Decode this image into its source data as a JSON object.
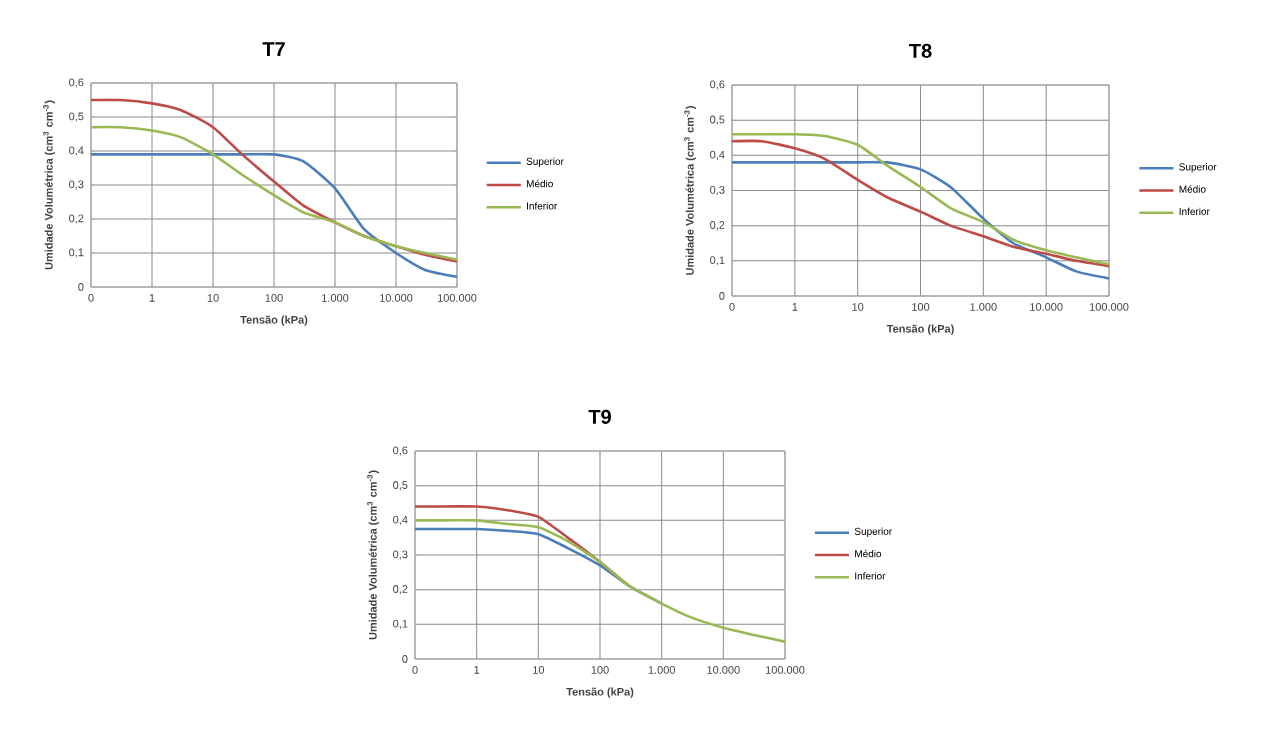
{
  "chart_data": [
    {
      "type": "line",
      "title": "T7",
      "xlabel": "Tensão (kPa)",
      "ylabel": "Umidade Volumétrica (cm$^{3}$ cm$^{-3}$)",
      "log": "x",
      "grid": true,
      "legend": "right",
      "x": [
        0.1,
        0.3,
        1,
        3,
        10,
        30,
        100,
        300,
        1000,
        3000,
        10000,
        30000,
        100000
      ],
      "xlim": [
        0.1,
        100000
      ],
      "ylim": [
        0,
        0.6
      ],
      "xticks": [
        {
          "value": 0.1,
          "label": "0"
        },
        1,
        10,
        100,
        {
          "value": 1000,
          "label": "1.000"
        },
        {
          "value": 10000,
          "label": "10.000"
        },
        {
          "value": 100000,
          "label": "100.000"
        }
      ],
      "yticks": [
        0,
        {
          "value": 0.1,
          "label": "0,1"
        },
        {
          "value": 0.2,
          "label": "0,2"
        },
        {
          "value": 0.3,
          "label": "0,3"
        },
        {
          "value": 0.4,
          "label": "0,4"
        },
        {
          "value": 0.5,
          "label": "0,5"
        },
        {
          "value": 0.6,
          "label": "0,6"
        }
      ],
      "series": [
        {
          "name": "Superior",
          "color": "#4a7ebb",
          "values": [
            0.39,
            0.39,
            0.39,
            0.39,
            0.39,
            0.39,
            0.39,
            0.37,
            0.29,
            0.17,
            0.1,
            0.05,
            0.03
          ]
        },
        {
          "name": "Médio",
          "color": "#be4b48",
          "values": [
            0.55,
            0.55,
            0.54,
            0.52,
            0.47,
            0.39,
            0.31,
            0.24,
            0.19,
            0.15,
            0.12,
            0.095,
            0.075
          ]
        },
        {
          "name": "Inferior",
          "color": "#98b954",
          "values": [
            0.47,
            0.47,
            0.46,
            0.44,
            0.39,
            0.33,
            0.27,
            0.22,
            0.19,
            0.15,
            0.12,
            0.1,
            0.08
          ]
        }
      ]
    },
    {
      "type": "line",
      "title": "T8",
      "xlabel": "Tensão (kPa)",
      "ylabel": "Umidade Volumétrica (cm$^{3}$ cm$^{-3}$)",
      "log": "x",
      "grid": true,
      "legend": "right",
      "x": [
        0.1,
        0.3,
        1,
        3,
        10,
        30,
        100,
        300,
        1000,
        3000,
        10000,
        30000,
        100000
      ],
      "xlim": [
        0.1,
        100000
      ],
      "ylim": [
        0,
        0.6
      ],
      "xticks": [
        {
          "value": 0.1,
          "label": "0"
        },
        1,
        10,
        100,
        {
          "value": 1000,
          "label": "1.000"
        },
        {
          "value": 10000,
          "label": "10.000"
        },
        {
          "value": 100000,
          "label": "100.000"
        }
      ],
      "yticks": [
        0,
        {
          "value": 0.1,
          "label": "0,1"
        },
        {
          "value": 0.2,
          "label": "0,2"
        },
        {
          "value": 0.3,
          "label": "0,3"
        },
        {
          "value": 0.4,
          "label": "0,4"
        },
        {
          "value": 0.5,
          "label": "0,5"
        },
        {
          "value": 0.6,
          "label": "0,6"
        }
      ],
      "series": [
        {
          "name": "Superior",
          "color": "#4a7ebb",
          "values": [
            0.38,
            0.38,
            0.38,
            0.38,
            0.38,
            0.38,
            0.36,
            0.31,
            0.22,
            0.15,
            0.11,
            0.07,
            0.05
          ]
        },
        {
          "name": "Médio",
          "color": "#be4b48",
          "values": [
            0.44,
            0.44,
            0.42,
            0.39,
            0.33,
            0.28,
            0.24,
            0.2,
            0.17,
            0.14,
            0.12,
            0.1,
            0.085
          ]
        },
        {
          "name": "Inferior",
          "color": "#98b954",
          "values": [
            0.46,
            0.46,
            0.46,
            0.455,
            0.43,
            0.37,
            0.31,
            0.25,
            0.21,
            0.16,
            0.13,
            0.11,
            0.09
          ]
        }
      ]
    },
    {
      "type": "line",
      "title": "T9",
      "xlabel": "Tensão (kPa)",
      "ylabel": "Umidade Volumétrica (cm$^{3}$ cm$^{-3}$)",
      "log": "x",
      "grid": true,
      "legend": "right",
      "x": [
        0.1,
        0.3,
        1,
        3,
        10,
        30,
        100,
        300,
        1000,
        3000,
        10000,
        30000,
        100000
      ],
      "xlim": [
        0.1,
        100000
      ],
      "ylim": [
        0,
        0.6
      ],
      "xticks": [
        {
          "value": 0.1,
          "label": "0"
        },
        1,
        10,
        100,
        {
          "value": 1000,
          "label": "1.000"
        },
        {
          "value": 10000,
          "label": "10.000"
        },
        {
          "value": 100000,
          "label": "100.000"
        }
      ],
      "yticks": [
        0,
        {
          "value": 0.1,
          "label": "0,1"
        },
        {
          "value": 0.2,
          "label": "0,2"
        },
        {
          "value": 0.3,
          "label": "0,3"
        },
        {
          "value": 0.4,
          "label": "0,4"
        },
        {
          "value": 0.5,
          "label": "0,5"
        },
        {
          "value": 0.6,
          "label": "0,6"
        }
      ],
      "series": [
        {
          "name": "Superior",
          "color": "#4a7ebb",
          "values": [
            0.375,
            0.375,
            0.375,
            0.37,
            0.36,
            0.32,
            0.27,
            0.21,
            0.16,
            null,
            null,
            null,
            null
          ]
        },
        {
          "name": "Médio",
          "color": "#be4b48",
          "values": [
            0.44,
            0.44,
            0.44,
            0.43,
            0.41,
            0.35,
            0.28,
            0.21,
            null,
            null,
            null,
            null,
            null
          ]
        },
        {
          "name": "Inferior",
          "color": "#98b954",
          "values": [
            0.4,
            0.4,
            0.4,
            0.39,
            0.38,
            0.34,
            0.28,
            0.21,
            0.16,
            0.12,
            0.09,
            0.07,
            0.05
          ]
        }
      ]
    }
  ]
}
